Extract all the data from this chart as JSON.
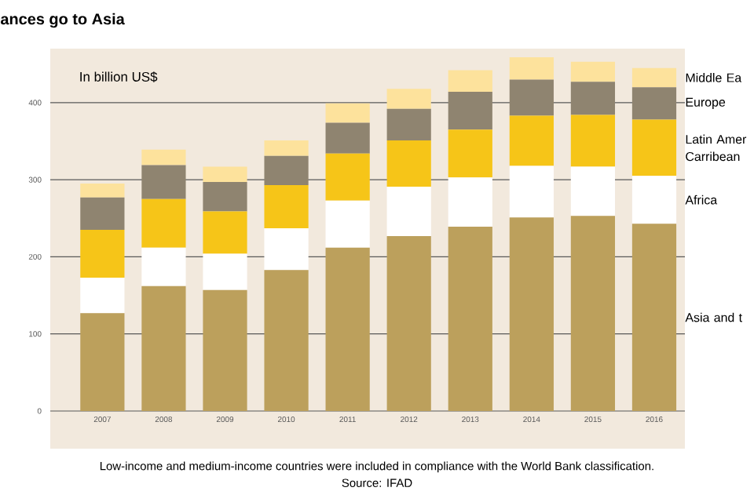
{
  "chart_data": {
    "type": "bar",
    "stacked": true,
    "title": "ances go to Asia",
    "ylabel": "In billion US$",
    "categories": [
      "2007",
      "2008",
      "2009",
      "2010",
      "2011",
      "2012",
      "2013",
      "2014",
      "2015",
      "2016"
    ],
    "series": [
      {
        "name": "Asia and t",
        "color": "#bca05c",
        "values": [
          127,
          162,
          157,
          183,
          212,
          227,
          239,
          251,
          253,
          243
        ]
      },
      {
        "name": "Africa",
        "color": "#ffffff",
        "values": [
          46,
          50,
          47,
          54,
          61,
          64,
          64,
          67,
          64,
          62
        ]
      },
      {
        "name": "Latin Amer Carribean",
        "color": "#f6c518",
        "values": [
          62,
          63,
          55,
          56,
          61,
          60,
          62,
          65,
          67,
          73
        ]
      },
      {
        "name": "Europe",
        "color": "#8f8470",
        "values": [
          42,
          44,
          38,
          38,
          40,
          41,
          49,
          47,
          43,
          42
        ]
      },
      {
        "name": "Middle Ea",
        "color": "#fde29c",
        "values": [
          18,
          20,
          20,
          20,
          25,
          26,
          28,
          29,
          26,
          25
        ]
      }
    ],
    "ylim": [
      0,
      466
    ],
    "yticks": [
      0,
      100,
      200,
      300,
      400
    ],
    "grid": "y",
    "legend": "right",
    "annotations": [
      "Low-income and medium-income countries were included in compliance with the World Bank classification.",
      "Source: IFAD"
    ]
  }
}
